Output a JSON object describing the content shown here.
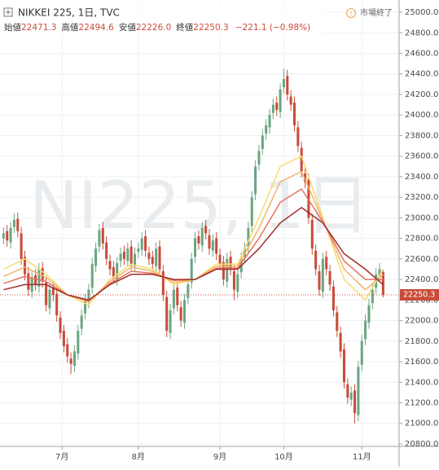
{
  "chart_data": {
    "type": "candlestick",
    "title": "NIKKEI 225, 1日, TVC",
    "watermark": "NI225, 1日",
    "status": "市場終了",
    "ohlc_names": [
      "始値",
      "高値",
      "安値",
      "終値"
    ],
    "ohlc_value_labels": [
      "22471.3",
      "22494.6",
      "22226.0",
      "22250.3"
    ],
    "change_text": "−221.1 (−0.98%)",
    "up_color": "#6ba583",
    "down_color": "#c94c3a",
    "open": [
      22800,
      22870,
      22760,
      22910,
      22990,
      22850,
      22620,
      22460,
      22280,
      22440,
      22330,
      22510,
      22370,
      22120,
      22320,
      22260,
      22030,
      21900,
      21770,
      21630,
      21560,
      21680,
      21920,
      22070,
      22180,
      22320,
      22530,
      22720,
      22900,
      22760,
      22580,
      22520,
      22400,
      22580,
      22670,
      22580,
      22720,
      22530,
      22670,
      22690,
      22820,
      22660,
      22620,
      22530,
      22720,
      22480,
      22230,
      21880,
      22120,
      22320,
      22130,
      21980,
      22220,
      22370,
      22620,
      22820,
      22730,
      22920,
      22830,
      22680,
      22800,
      22640,
      22570,
      22380,
      22620,
      22480,
      22280,
      22470,
      22620,
      22720,
      22920,
      23230,
      23520,
      23670,
      23820,
      23880,
      24020,
      24120,
      24030,
      24270,
      24380,
      24180,
      24120,
      23880,
      23680,
      23430,
      23370,
      22980,
      22680,
      22480,
      22280,
      22620,
      22480,
      22330,
      22080,
      21880,
      21720,
      21380,
      21230,
      21320,
      21080,
      21570,
      21820,
      21980,
      22170,
      22320,
      22430,
      22471.3
    ],
    "high": [
      22910,
      22930,
      22960,
      23040,
      23050,
      22910,
      22680,
      22520,
      22480,
      22500,
      22560,
      22570,
      22430,
      22360,
      22380,
      22320,
      22090,
      21960,
      21830,
      21690,
      21760,
      21960,
      22110,
      22260,
      22360,
      22610,
      22760,
      22940,
      22960,
      22820,
      22640,
      22580,
      22620,
      22710,
      22730,
      22760,
      22780,
      22710,
      22760,
      22860,
      22880,
      22720,
      22680,
      22760,
      22780,
      22540,
      22290,
      22160,
      22360,
      22380,
      22190,
      22260,
      22410,
      22660,
      22860,
      22880,
      22960,
      22980,
      22890,
      22840,
      22860,
      22700,
      22630,
      22660,
      22680,
      22540,
      22510,
      22660,
      22760,
      22960,
      23260,
      23560,
      23710,
      23860,
      23960,
      24060,
      24160,
      24180,
      24310,
      24450,
      24440,
      24240,
      24180,
      23940,
      23740,
      23490,
      23430,
      23040,
      22740,
      22540,
      22660,
      22680,
      22540,
      22390,
      22140,
      21940,
      21780,
      21440,
      21360,
      21380,
      21610,
      21860,
      22060,
      22210,
      22360,
      22510,
      22560,
      22494.6
    ],
    "low": [
      22740,
      22720,
      22700,
      22850,
      22810,
      22540,
      22390,
      22240,
      22220,
      22290,
      22270,
      22320,
      22090,
      22060,
      22190,
      21990,
      21820,
      21690,
      21590,
      21480,
      21500,
      21620,
      21860,
      22010,
      22120,
      22260,
      22470,
      22660,
      22690,
      22540,
      22440,
      22360,
      22340,
      22520,
      22540,
      22520,
      22490,
      22470,
      22610,
      22630,
      22620,
      22540,
      22490,
      22470,
      22440,
      22190,
      21840,
      21820,
      22060,
      22090,
      21940,
      21920,
      22160,
      22310,
      22560,
      22690,
      22670,
      22790,
      22640,
      22620,
      22590,
      22490,
      22340,
      22320,
      22440,
      22200,
      22220,
      22410,
      22560,
      22660,
      22860,
      23170,
      23460,
      23610,
      23760,
      23820,
      23960,
      23990,
      23970,
      24210,
      24140,
      24040,
      23840,
      23640,
      23390,
      23290,
      22940,
      22640,
      22440,
      22240,
      22220,
      22440,
      22290,
      22040,
      21840,
      21640,
      21340,
      21190,
      21170,
      21000,
      21020,
      21510,
      21760,
      21920,
      22110,
      22260,
      22370,
      22226.0
    ],
    "close": [
      22850,
      22780,
      22900,
      22980,
      22870,
      22600,
      22450,
      22300,
      22420,
      22350,
      22500,
      22380,
      22150,
      22300,
      22250,
      22050,
      21880,
      21750,
      21650,
      21580,
      21700,
      21900,
      22050,
      22200,
      22300,
      22550,
      22700,
      22880,
      22750,
      22600,
      22500,
      22420,
      22560,
      22650,
      22600,
      22700,
      22550,
      22650,
      22700,
      22800,
      22680,
      22600,
      22550,
      22700,
      22500,
      22250,
      21900,
      22100,
      22300,
      22150,
      22000,
      22200,
      22350,
      22600,
      22800,
      22750,
      22900,
      22850,
      22700,
      22780,
      22650,
      22550,
      22400,
      22600,
      22500,
      22300,
      22450,
      22600,
      22700,
      22900,
      23200,
      23500,
      23650,
      23800,
      23900,
      24000,
      24100,
      24050,
      24250,
      24350,
      24200,
      24100,
      23900,
      23700,
      23450,
      23350,
      23000,
      22700,
      22500,
      22300,
      22600,
      22500,
      22350,
      22100,
      21900,
      21700,
      21400,
      21250,
      21300,
      21100,
      21550,
      21800,
      22000,
      22150,
      22300,
      22450,
      22500,
      22250.3
    ],
    "ribbon_x": [
      0,
      6,
      12,
      18,
      24,
      30,
      36,
      42,
      48,
      54,
      60,
      66,
      72,
      78,
      84,
      90,
      96,
      102,
      107
    ],
    "ribbon": [
      {
        "color": "#f7dc6f",
        "values": [
          22500,
          22600,
          22450,
          22250,
          22150,
          22400,
          22550,
          22500,
          22350,
          22400,
          22550,
          22550,
          23000,
          23500,
          23600,
          23000,
          22400,
          22200,
          22500
        ]
      },
      {
        "color": "#f5b36b",
        "values": [
          22430,
          22520,
          22420,
          22250,
          22180,
          22380,
          22520,
          22480,
          22370,
          22400,
          22530,
          22530,
          22900,
          23350,
          23450,
          22980,
          22500,
          22300,
          22450
        ]
      },
      {
        "color": "#e8715a",
        "values": [
          22360,
          22430,
          22380,
          22250,
          22190,
          22360,
          22480,
          22460,
          22390,
          22400,
          22510,
          22510,
          22800,
          23150,
          23280,
          22960,
          22580,
          22400,
          22400
        ]
      },
      {
        "color": "#9e2f2a",
        "values": [
          22300,
          22350,
          22350,
          22250,
          22200,
          22350,
          22450,
          22450,
          22400,
          22400,
          22500,
          22500,
          22700,
          22950,
          23100,
          22950,
          22650,
          22500,
          22350
        ]
      }
    ],
    "xlim": [
      -1,
      111.5
    ],
    "xticks": [
      {
        "value": 16.5,
        "label": "7月"
      },
      {
        "value": 38,
        "label": "8月"
      },
      {
        "value": 61,
        "label": "9月"
      },
      {
        "value": 79,
        "label": "10月"
      },
      {
        "value": 101,
        "label": "11月"
      }
    ],
    "ylim": [
      20776,
      25119
    ],
    "yticks": [
      {
        "value": 20800,
        "label": "20800.0"
      },
      {
        "value": 21000,
        "label": "21000.0"
      },
      {
        "value": 21200,
        "label": "21200.0"
      },
      {
        "value": 21400,
        "label": "21400.0"
      },
      {
        "value": 21600,
        "label": "21600.0"
      },
      {
        "value": 21800,
        "label": "21800.0"
      },
      {
        "value": 22000,
        "label": "22000.0"
      },
      {
        "value": 22200,
        "label": "22200.0"
      },
      {
        "value": 22400,
        "label": "22400.0"
      },
      {
        "value": 22600,
        "label": "22600.0"
      },
      {
        "value": 22800,
        "label": "22800.0"
      },
      {
        "value": 23000,
        "label": "23000.0"
      },
      {
        "value": 23200,
        "label": "23200.0"
      },
      {
        "value": 23400,
        "label": "23400.0"
      },
      {
        "value": 23600,
        "label": "23600.0"
      },
      {
        "value": 23800,
        "label": "23800.0"
      },
      {
        "value": 24000,
        "label": "24000.0"
      },
      {
        "value": 24200,
        "label": "24200.0"
      },
      {
        "value": 24400,
        "label": "24400.0"
      },
      {
        "value": 24600,
        "label": "24600.0"
      },
      {
        "value": 24800,
        "label": "24800.0"
      },
      {
        "value": 25000,
        "label": "25000.0"
      }
    ],
    "grid": true
  }
}
